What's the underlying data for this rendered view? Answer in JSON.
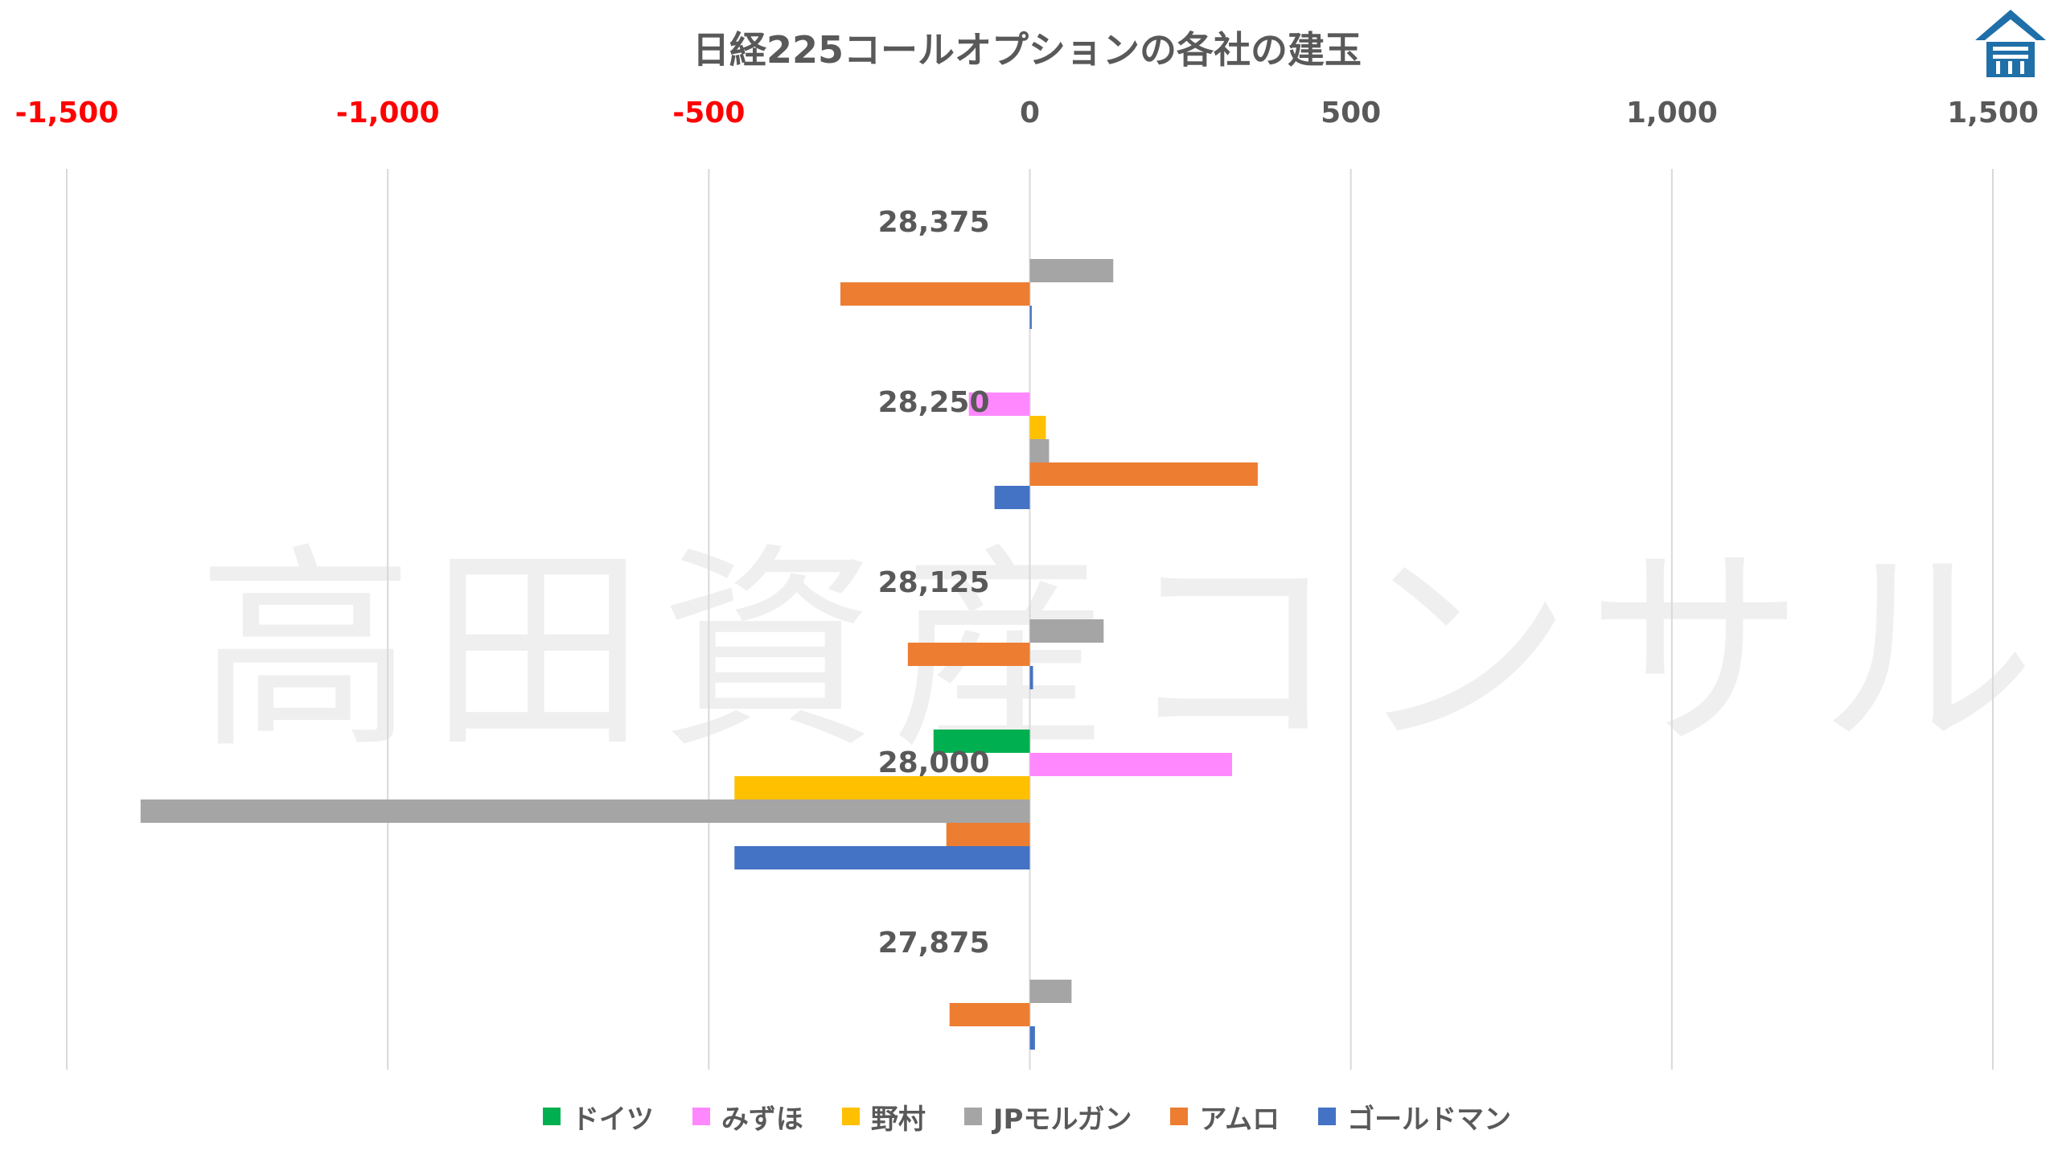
{
  "watermark": "高田資産コンサル",
  "colors": {
    "ドイツ": "#00B050",
    "みずほ": "#FF88FF",
    "野村": "#FFC000",
    "JPモルガン": "#A5A5A5",
    "アムロ": "#ED7D31",
    "ゴールドマン": "#4472C4",
    "negative_tick": "#FF0000",
    "positive_tick": "#595959",
    "grid": "#D9D9D9",
    "logo": "#1F6FA8"
  },
  "chart_data": {
    "type": "bar",
    "orientation": "horizontal",
    "title": "日経225コールオプションの各社の建玉",
    "xlabel": "",
    "ylabel": "",
    "xlim": [
      -1500,
      1500
    ],
    "x_ticks": [
      -1500,
      -1000,
      -500,
      0,
      500,
      1000,
      1500
    ],
    "x_tick_labels": [
      "-1,500",
      "-1,000",
      "-500",
      "0",
      "500",
      "1,000",
      "1,500"
    ],
    "x_axis_position": "top",
    "grid": true,
    "legend_position": "bottom",
    "categories": [
      "28,375",
      "28,250",
      "28,125",
      "28,000",
      "27,875"
    ],
    "series": [
      {
        "name": "ドイツ",
        "values": [
          0,
          0,
          0,
          -150,
          0
        ]
      },
      {
        "name": "みずほ",
        "values": [
          0,
          -95,
          0,
          315,
          0
        ]
      },
      {
        "name": "野村",
        "values": [
          0,
          25,
          0,
          -460,
          0
        ]
      },
      {
        "name": "JPモルガン",
        "values": [
          130,
          30,
          115,
          -1385,
          65
        ]
      },
      {
        "name": "アムロ",
        "values": [
          -295,
          355,
          -190,
          -130,
          -125
        ]
      },
      {
        "name": "ゴールドマン",
        "values": [
          3,
          -55,
          5,
          -460,
          8
        ]
      }
    ]
  }
}
